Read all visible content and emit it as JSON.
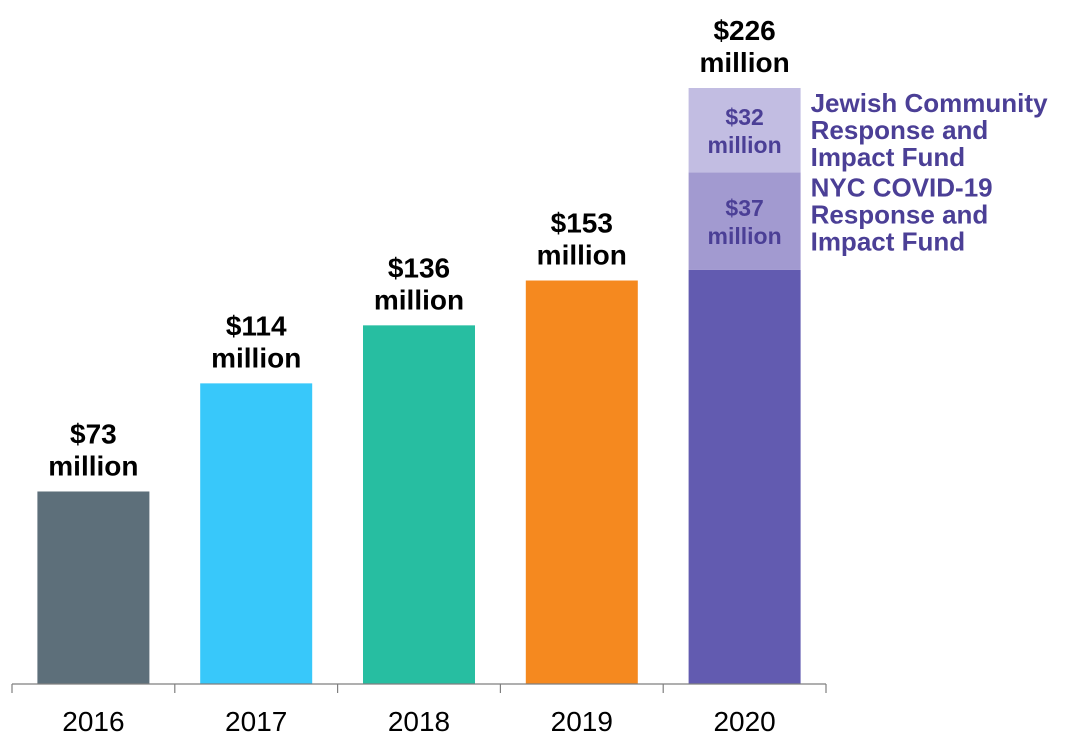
{
  "chart_data": {
    "type": "bar",
    "stacked": true,
    "categories": [
      "2016",
      "2017",
      "2018",
      "2019",
      "2020"
    ],
    "totals": [
      73,
      114,
      136,
      153,
      226
    ],
    "total_labels": [
      [
        "$73",
        "million"
      ],
      [
        "$114",
        "million"
      ],
      [
        "$136",
        "million"
      ],
      [
        "$153",
        "million"
      ],
      [
        "$226",
        "million"
      ]
    ],
    "series": [
      {
        "values": [
          73,
          114,
          136,
          153,
          157
        ],
        "colors": [
          "#5d6f7a",
          "#38c8fa",
          "#27bea1",
          "#f5891f",
          "#625bb0"
        ]
      },
      {
        "name": "NYC COVID-19 Response and Impact Fund",
        "name_lines": [
          "NYC COVID-19",
          "Response and",
          "Impact Fund"
        ],
        "values": [
          0,
          0,
          0,
          0,
          37
        ],
        "color": "#a29ad0",
        "segment_label": [
          "$37",
          "million"
        ]
      },
      {
        "name": "Jewish Community Response and Impact Fund",
        "name_lines": [
          "Jewish Community",
          "Response and",
          "Impact Fund"
        ],
        "values": [
          0,
          0,
          0,
          0,
          32
        ],
        "color": "#c2bde2",
        "segment_label": [
          "$32",
          "million"
        ]
      }
    ],
    "ylim": [
      0,
      226
    ],
    "grid": false,
    "legend": "right-of-last-bar",
    "label_color": "#4b3f96",
    "title": "",
    "xlabel": "",
    "ylabel": ""
  }
}
